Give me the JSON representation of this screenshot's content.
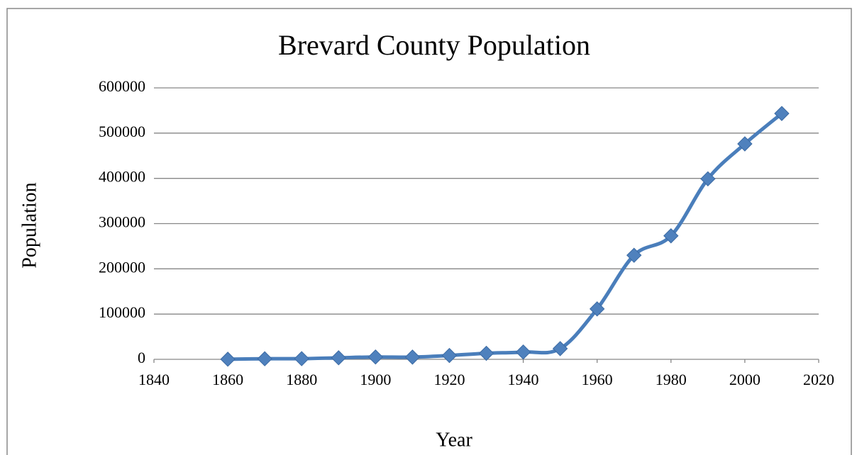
{
  "chart_data": {
    "type": "line",
    "title": "Brevard County Population",
    "x_label": "Year",
    "y_label": "Population",
    "x": [
      1860,
      1870,
      1880,
      1890,
      1900,
      1910,
      1920,
      1930,
      1940,
      1950,
      1960,
      1970,
      1980,
      1990,
      2000,
      2010
    ],
    "series": [
      {
        "name": "Population",
        "color": "#4a7ebb",
        "values": [
          246,
          1216,
          1478,
          3401,
          5158,
          4865,
          8505,
          13283,
          16142,
          23653,
          111435,
          230006,
          272959,
          398978,
          476230,
          543376
        ]
      }
    ],
    "xlim": [
      1840,
      2020
    ],
    "xticks": [
      1840,
      1860,
      1880,
      1900,
      1920,
      1940,
      1960,
      1980,
      2000,
      2020
    ],
    "ylim": [
      0,
      600000
    ],
    "yticks": [
      0,
      100000,
      200000,
      300000,
      400000,
      500000,
      600000
    ],
    "grid": true,
    "smooth": true
  }
}
